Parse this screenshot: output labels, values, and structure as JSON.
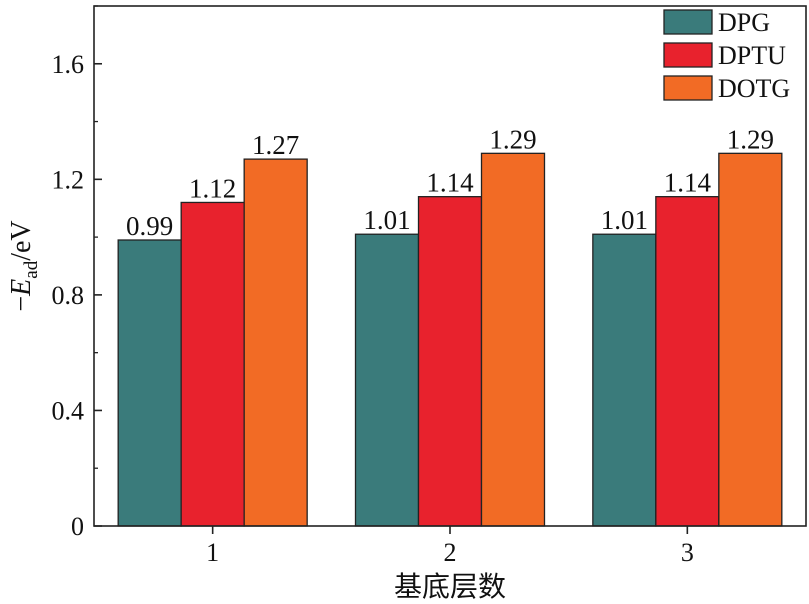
{
  "chart_data": {
    "type": "bar",
    "categories": [
      "1",
      "2",
      "3"
    ],
    "series": [
      {
        "name": "DPG",
        "color": "#3a7b7b",
        "values": [
          0.99,
          1.01,
          1.01
        ]
      },
      {
        "name": "DPTU",
        "color": "#e8222d",
        "values": [
          1.12,
          1.14,
          1.14
        ]
      },
      {
        "name": "DOTG",
        "color": "#f26b25",
        "values": [
          1.27,
          1.29,
          1.29
        ]
      }
    ],
    "data_labels": [
      [
        "0.99",
        "1.01",
        "1.01"
      ],
      [
        "1.12",
        "1.14",
        "1.14"
      ],
      [
        "1.27",
        "1.29",
        "1.29"
      ]
    ],
    "xlabel": "基底层数",
    "ylabel": {
      "prefix": "−",
      "symbol": "E",
      "subscript": "ad",
      "suffix": "/eV"
    },
    "ylim": [
      0,
      1.8
    ],
    "yticks": [
      0,
      0.4,
      0.8,
      1.2,
      1.6
    ],
    "ytick_labels": [
      "0",
      "0.4",
      "0.8",
      "1.2",
      "1.6"
    ],
    "legend_position": "top-right",
    "grid": false
  }
}
